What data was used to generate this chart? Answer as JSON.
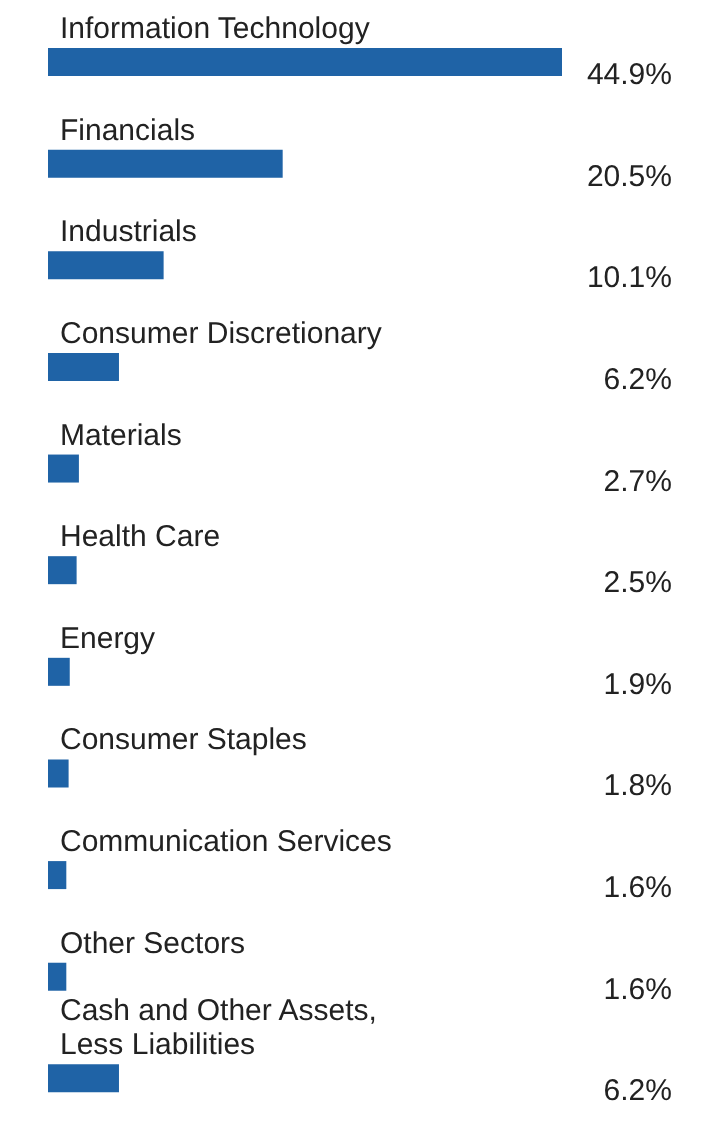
{
  "chart_data": {
    "type": "bar",
    "orientation": "horizontal",
    "categories": [
      "Information Technology",
      "Financials",
      "Industrials",
      "Consumer Discretionary",
      "Materials",
      "Health Care",
      "Energy",
      "Consumer Staples",
      "Communication Services",
      "Other Sectors",
      "Cash and Other Assets, Less Liabilities"
    ],
    "values": [
      44.9,
      20.5,
      10.1,
      6.2,
      2.7,
      2.5,
      1.9,
      1.8,
      1.6,
      1.6,
      6.2
    ],
    "value_labels": [
      "44.9%",
      "20.5%",
      "10.1%",
      "6.2%",
      "2.7%",
      "2.5%",
      "1.9%",
      "1.8%",
      "1.6%",
      "1.6%",
      "6.2%"
    ],
    "color": "#1f63a6"
  }
}
